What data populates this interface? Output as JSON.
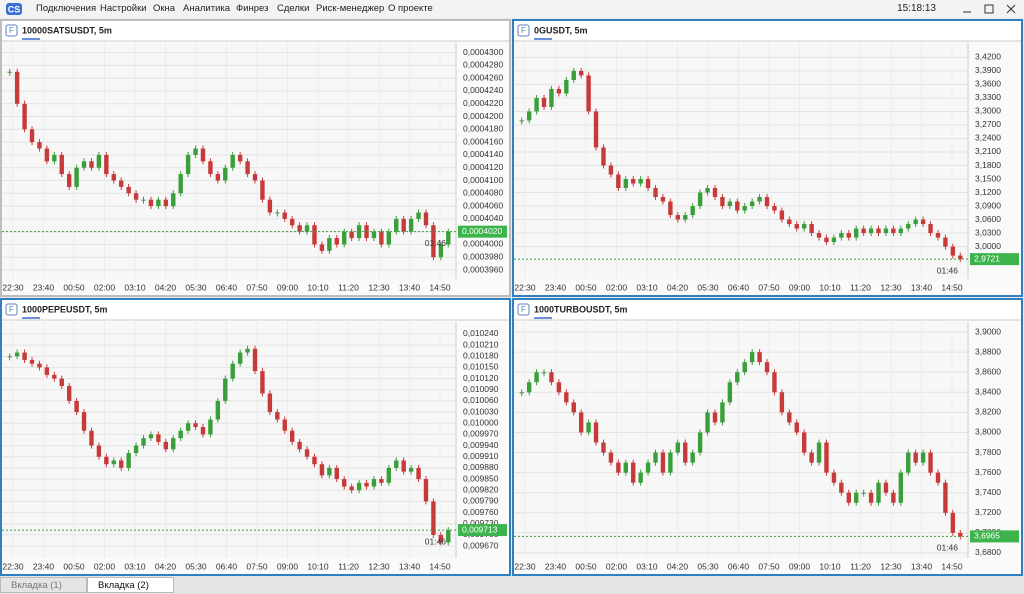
{
  "menu": [
    "Подключения",
    "Настройки",
    "Окна",
    "Аналитика",
    "Финрез",
    "Сделки",
    "Риск-менеджер",
    "О проекте"
  ],
  "clock": "15:18:13",
  "tabs": [
    "Вкладка (1)",
    "Вкладка (2)"
  ],
  "panels": [
    {
      "title": "10000SATSUSDT, 5m",
      "ylim": [
        0.0003946,
        0.0004315
      ],
      "yticks": [
        {
          "value": 0.00043,
          "label": "0,0004300"
        },
        {
          "value": 0.000428,
          "label": "0,0004280"
        },
        {
          "value": 0.000426,
          "label": "0,0004260"
        },
        {
          "value": 0.000424,
          "label": "0,0004240"
        },
        {
          "value": 0.000422,
          "label": "0,0004220"
        },
        {
          "value": 0.00042,
          "label": "0,0004200"
        },
        {
          "value": 0.000418,
          "label": "0,0004180"
        },
        {
          "value": 0.000416,
          "label": "0,0004160"
        },
        {
          "value": 0.000414,
          "label": "0,0004140"
        },
        {
          "value": 0.000412,
          "label": "0,0004120"
        },
        {
          "value": 0.00041,
          "label": "0,0004100"
        },
        {
          "value": 0.000408,
          "label": "0,0004080"
        },
        {
          "value": 0.000406,
          "label": "0,0004060"
        },
        {
          "value": 0.000404,
          "label": "0,0004040"
        },
        {
          "value": 0.000402,
          "label": "0,0004020"
        },
        {
          "value": 0.0004,
          "label": "0,0004000"
        },
        {
          "value": 0.000398,
          "label": "0,0003980"
        },
        {
          "value": 0.000396,
          "label": "0,0003960"
        }
      ],
      "xlabels": [
        "22:30",
        "23:40",
        "00:50",
        "02:00",
        "03:10",
        "04:20",
        "05:30",
        "06:40",
        "07:50",
        "09:00",
        "10:10",
        "11:20",
        "12:30",
        "13:40",
        "14:50"
      ],
      "closes": [
        0.000427,
        0.000422,
        0.000418,
        0.000416,
        0.000415,
        0.000413,
        0.000414,
        0.000411,
        0.000409,
        0.000412,
        0.000413,
        0.000412,
        0.000414,
        0.000411,
        0.00041,
        0.000409,
        0.000408,
        0.000407,
        0.000407,
        0.000406,
        0.000407,
        0.000406,
        0.000408,
        0.000411,
        0.000414,
        0.000415,
        0.000413,
        0.000411,
        0.00041,
        0.000412,
        0.000414,
        0.000413,
        0.000411,
        0.00041,
        0.000407,
        0.000405,
        0.000405,
        0.000404,
        0.000403,
        0.000402,
        0.000403,
        0.0004,
        0.000399,
        0.000401,
        0.0004,
        0.000402,
        0.000401,
        0.000403,
        0.000401,
        0.000402,
        0.0004,
        0.000402,
        0.000404,
        0.000402,
        0.000404,
        0.000405,
        0.000403,
        0.000398,
        0.0004,
        0.000402
      ],
      "price": {
        "value": 0.000402,
        "label": "0,0004020"
      },
      "countdown": "01:46"
    },
    {
      "title": "0GUSDT, 5m",
      "ylim": [
        2.928,
        3.452
      ],
      "yticks": [
        {
          "value": 3.42,
          "label": "3,4200"
        },
        {
          "value": 3.39,
          "label": "3,3900"
        },
        {
          "value": 3.36,
          "label": "3,3600"
        },
        {
          "value": 3.33,
          "label": "3,3300"
        },
        {
          "value": 3.3,
          "label": "3,3000"
        },
        {
          "value": 3.27,
          "label": "3,2700"
        },
        {
          "value": 3.24,
          "label": "3,2400"
        },
        {
          "value": 3.21,
          "label": "3,2100"
        },
        {
          "value": 3.18,
          "label": "3,1800"
        },
        {
          "value": 3.15,
          "label": "3,1500"
        },
        {
          "value": 3.12,
          "label": "3,1200"
        },
        {
          "value": 3.09,
          "label": "3,0900"
        },
        {
          "value": 3.06,
          "label": "3,0600"
        },
        {
          "value": 3.03,
          "label": "3,0300"
        },
        {
          "value": 3.0,
          "label": "3,0000"
        }
      ],
      "xlabels": [
        "22:30",
        "23:40",
        "00:50",
        "02:00",
        "03:10",
        "04:20",
        "05:30",
        "06:40",
        "07:50",
        "09:00",
        "10:10",
        "11:20",
        "12:30",
        "13:40",
        "14:50"
      ],
      "closes": [
        3.28,
        3.3,
        3.33,
        3.31,
        3.35,
        3.34,
        3.37,
        3.39,
        3.38,
        3.3,
        3.22,
        3.18,
        3.16,
        3.13,
        3.15,
        3.14,
        3.15,
        3.13,
        3.11,
        3.1,
        3.07,
        3.06,
        3.07,
        3.09,
        3.12,
        3.13,
        3.11,
        3.09,
        3.1,
        3.08,
        3.09,
        3.1,
        3.11,
        3.09,
        3.08,
        3.06,
        3.05,
        3.04,
        3.05,
        3.03,
        3.02,
        3.01,
        3.02,
        3.03,
        3.02,
        3.04,
        3.03,
        3.04,
        3.03,
        3.04,
        3.03,
        3.04,
        3.05,
        3.06,
        3.05,
        3.03,
        3.02,
        3.0,
        2.98,
        2.9721
      ],
      "price": {
        "value": 2.9721,
        "label": "2,9721"
      },
      "countdown": "01:46"
    },
    {
      "title": "1000PEPEUSDT, 5m",
      "ylim": [
        0.009638,
        0.010272
      ],
      "yticks": [
        {
          "value": 0.01024,
          "label": "0,010240"
        },
        {
          "value": 0.01021,
          "label": "0,010210"
        },
        {
          "value": 0.01018,
          "label": "0,010180"
        },
        {
          "value": 0.01015,
          "label": "0,010150"
        },
        {
          "value": 0.01012,
          "label": "0,010120"
        },
        {
          "value": 0.01009,
          "label": "0,010090"
        },
        {
          "value": 0.01006,
          "label": "0,010060"
        },
        {
          "value": 0.01003,
          "label": "0,010030"
        },
        {
          "value": 0.01,
          "label": "0,010000"
        },
        {
          "value": 0.00997,
          "label": "0,009970"
        },
        {
          "value": 0.00994,
          "label": "0,009940"
        },
        {
          "value": 0.00991,
          "label": "0,009910"
        },
        {
          "value": 0.00988,
          "label": "0,009880"
        },
        {
          "value": 0.00985,
          "label": "0,009850"
        },
        {
          "value": 0.00982,
          "label": "0,009820"
        },
        {
          "value": 0.00979,
          "label": "0,009790"
        },
        {
          "value": 0.00976,
          "label": "0,009760"
        },
        {
          "value": 0.00973,
          "label": "0,009730"
        },
        {
          "value": 0.0097,
          "label": "0,009700"
        },
        {
          "value": 0.00967,
          "label": "0,009670"
        }
      ],
      "xlabels": [
        "22:30",
        "23:40",
        "00:50",
        "02:00",
        "03:10",
        "04:20",
        "05:30",
        "06:40",
        "07:50",
        "09:00",
        "10:10",
        "11:20",
        "12:30",
        "13:40",
        "14:50"
      ],
      "closes": [
        0.01018,
        0.01019,
        0.01017,
        0.01016,
        0.01015,
        0.01013,
        0.01012,
        0.0101,
        0.01006,
        0.01003,
        0.00998,
        0.00994,
        0.00991,
        0.00989,
        0.0099,
        0.00988,
        0.00992,
        0.00994,
        0.00996,
        0.00997,
        0.00995,
        0.00993,
        0.00996,
        0.00998,
        0.01,
        0.00999,
        0.00997,
        0.01001,
        0.01006,
        0.01012,
        0.01016,
        0.01019,
        0.0102,
        0.01014,
        0.01008,
        0.01003,
        0.01001,
        0.00998,
        0.00995,
        0.00993,
        0.00991,
        0.00989,
        0.00986,
        0.00988,
        0.00985,
        0.00983,
        0.00982,
        0.00984,
        0.00983,
        0.00985,
        0.00984,
        0.00988,
        0.0099,
        0.00987,
        0.00988,
        0.00985,
        0.00979,
        0.0097,
        0.00968,
        0.009713
      ],
      "price": {
        "value": 0.009713,
        "label": "0,009713"
      },
      "countdown": "01:46"
    },
    {
      "title": "1000TURBOUSDT, 5m",
      "ylim": [
        3.675,
        3.91
      ],
      "yticks": [
        {
          "value": 3.9,
          "label": "3,9000"
        },
        {
          "value": 3.88,
          "label": "3,8800"
        },
        {
          "value": 3.86,
          "label": "3,8600"
        },
        {
          "value": 3.84,
          "label": "3,8400"
        },
        {
          "value": 3.82,
          "label": "3,8200"
        },
        {
          "value": 3.8,
          "label": "3,8000"
        },
        {
          "value": 3.78,
          "label": "3,7800"
        },
        {
          "value": 3.76,
          "label": "3,7600"
        },
        {
          "value": 3.74,
          "label": "3,7400"
        },
        {
          "value": 3.72,
          "label": "3,7200"
        },
        {
          "value": 3.7,
          "label": "3,7000"
        },
        {
          "value": 3.68,
          "label": "3,6800"
        }
      ],
      "xlabels": [
        "22:30",
        "23:40",
        "00:50",
        "02:00",
        "03:10",
        "04:20",
        "05:30",
        "06:40",
        "07:50",
        "09:00",
        "10:10",
        "11:20",
        "12:30",
        "13:40",
        "14:50"
      ],
      "closes": [
        3.84,
        3.85,
        3.86,
        3.86,
        3.85,
        3.84,
        3.83,
        3.82,
        3.8,
        3.81,
        3.79,
        3.78,
        3.77,
        3.76,
        3.77,
        3.75,
        3.76,
        3.77,
        3.78,
        3.76,
        3.78,
        3.79,
        3.77,
        3.78,
        3.8,
        3.82,
        3.81,
        3.83,
        3.85,
        3.86,
        3.87,
        3.88,
        3.87,
        3.86,
        3.84,
        3.82,
        3.81,
        3.8,
        3.78,
        3.77,
        3.79,
        3.76,
        3.75,
        3.74,
        3.73,
        3.74,
        3.74,
        3.73,
        3.75,
        3.74,
        3.73,
        3.76,
        3.78,
        3.77,
        3.78,
        3.76,
        3.75,
        3.72,
        3.7,
        3.6965
      ],
      "price": {
        "value": 3.6965,
        "label": "3,6965"
      },
      "countdown": "01:46"
    }
  ]
}
